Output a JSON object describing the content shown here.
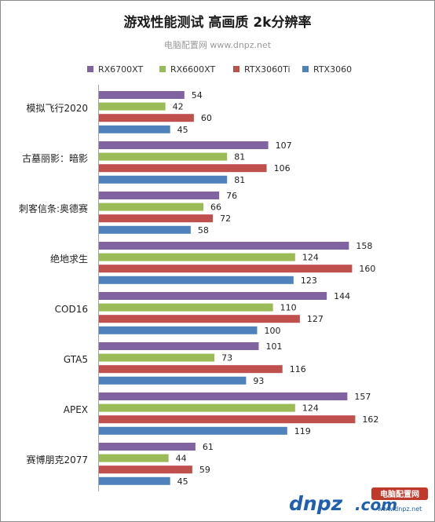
{
  "chart_data": {
    "type": "bar",
    "orientation": "horizontal",
    "title": "游戏性能测试 高画质 2k分辨率",
    "subtitle": "电脑配置网 www.dnpz.net",
    "legend_position": "top",
    "categories": [
      "模拟飞行2020",
      "古墓丽影：暗影",
      "刺客信条:奥德赛",
      "绝地求生",
      "COD16",
      "GTA5",
      "APEX",
      "赛博朋克2077"
    ],
    "series": [
      {
        "name": "RX6700XT",
        "color": "#8064a2",
        "values": [
          54,
          107,
          76,
          158,
          144,
          101,
          157,
          61
        ]
      },
      {
        "name": "RX6600XT",
        "color": "#9bbb59",
        "values": [
          42,
          81,
          66,
          124,
          110,
          73,
          124,
          44
        ]
      },
      {
        "name": "RTX3060Ti",
        "color": "#c0504d",
        "values": [
          60,
          106,
          72,
          160,
          127,
          116,
          162,
          59
        ]
      },
      {
        "name": "RTX3060",
        "color": "#4f81bd",
        "values": [
          45,
          81,
          58,
          123,
          100,
          93,
          119,
          45
        ]
      }
    ],
    "xlim": [
      0,
      180
    ],
    "grid": false
  },
  "watermark": {
    "main": "dnpz",
    "tail": ".com",
    "box_text": "电脑配置网",
    "url": "www.dnpz.net"
  }
}
